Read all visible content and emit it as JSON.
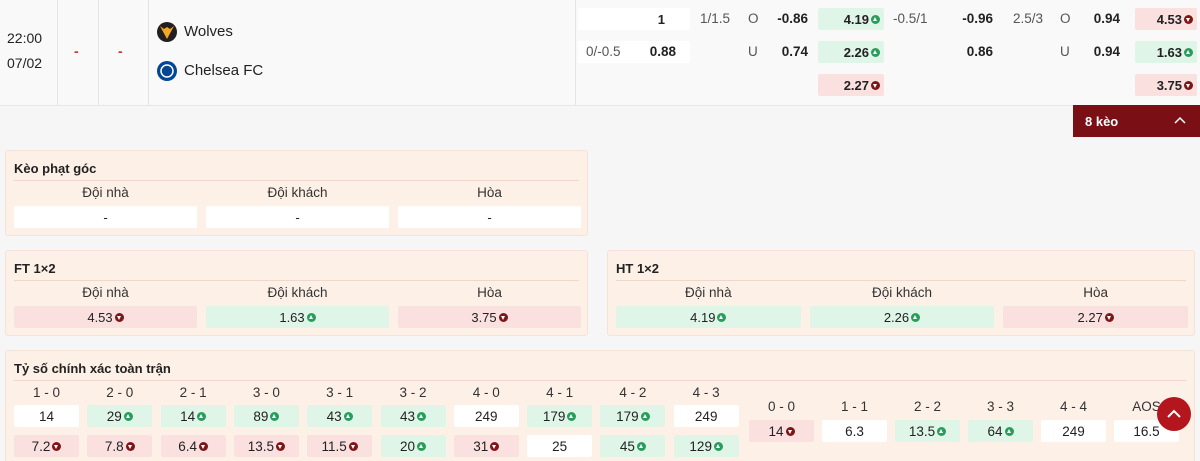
{
  "match": {
    "time": "22:00",
    "date": "07/02",
    "score_home": "-",
    "score_away": "-",
    "home": "Wolves",
    "away": "Chelsea FC",
    "odds": {
      "row1": [
        {
          "value": 1
        },
        {
          "value": "1/1.5"
        },
        {
          "value": "O"
        },
        {
          "value": -0.86
        },
        {
          "value": 4.19,
          "trend": "up"
        },
        {
          "value": "-0.5/1"
        },
        {
          "value": -0.96
        },
        {
          "value": "2.5/3"
        },
        {
          "value": "O"
        },
        {
          "value": 0.94
        },
        {
          "value": 4.53,
          "trend": "down"
        }
      ],
      "row2": [
        {
          "value": "0/-0.5"
        },
        {
          "value": 0.88
        },
        {
          "value": "U"
        },
        {
          "value": 0.74
        },
        {
          "value": 2.26,
          "trend": "up"
        },
        {
          "value": 0.86
        },
        {
          "value": "U"
        },
        {
          "value": 0.94
        },
        {
          "value": 1.63,
          "trend": "up"
        }
      ],
      "row3": [
        {
          "value": 2.27,
          "trend": "down"
        },
        {
          "value": 3.75,
          "trend": "down"
        }
      ]
    }
  },
  "more_button": "8 kèo",
  "corner": {
    "title": "Kèo phạt góc",
    "headers": [
      "Đội nhà",
      "Đội khách",
      "Hòa"
    ],
    "odds": [
      {
        "value": "-"
      },
      {
        "value": "-"
      },
      {
        "value": "-"
      }
    ]
  },
  "ft": {
    "title": "FT 1×2",
    "headers": [
      "Đội nhà",
      "Đội khách",
      "Hòa"
    ],
    "odds": [
      {
        "value": 4.53,
        "trend": "down"
      },
      {
        "value": 1.63,
        "trend": "up"
      },
      {
        "value": 3.75,
        "trend": "down"
      }
    ]
  },
  "ht": {
    "title": "HT 1×2",
    "headers": [
      "Đội nhà",
      "Đội khách",
      "Hòa"
    ],
    "odds": [
      {
        "value": 4.19,
        "trend": "up"
      },
      {
        "value": 2.26,
        "trend": "up"
      },
      {
        "value": 2.27,
        "trend": "down"
      }
    ]
  },
  "correct_score": {
    "title": "Tỷ số chính xác toàn trận",
    "scores": [
      {
        "label": "1 - 0",
        "odds": [
          {
            "value": 14
          },
          {
            "value": 7.2,
            "trend": "down"
          }
        ]
      },
      {
        "label": "2 - 0",
        "odds": [
          {
            "value": 29,
            "trend": "up"
          },
          {
            "value": 7.8,
            "trend": "down"
          }
        ]
      },
      {
        "label": "2 - 1",
        "odds": [
          {
            "value": 14,
            "trend": "up"
          },
          {
            "value": 6.4,
            "trend": "down"
          }
        ]
      },
      {
        "label": "3 - 0",
        "odds": [
          {
            "value": 89,
            "trend": "up"
          },
          {
            "value": 13.5,
            "trend": "down"
          }
        ]
      },
      {
        "label": "3 - 1",
        "odds": [
          {
            "value": 43,
            "trend": "up"
          },
          {
            "value": 11.5,
            "trend": "down"
          }
        ]
      },
      {
        "label": "3 - 2",
        "odds": [
          {
            "value": 43,
            "trend": "up"
          },
          {
            "value": 20,
            "trend": "up"
          }
        ]
      },
      {
        "label": "4 - 0",
        "odds": [
          {
            "value": 249
          },
          {
            "value": 31,
            "trend": "down"
          }
        ]
      },
      {
        "label": "4 - 1",
        "odds": [
          {
            "value": 179,
            "trend": "up"
          },
          {
            "value": 25
          }
        ]
      },
      {
        "label": "4 - 2",
        "odds": [
          {
            "value": 179,
            "trend": "up"
          },
          {
            "value": 45,
            "trend": "up"
          }
        ]
      },
      {
        "label": "4 - 3",
        "odds": [
          {
            "value": 249
          },
          {
            "value": 129,
            "trend": "up"
          }
        ]
      }
    ],
    "draws": [
      {
        "label": "0 - 0",
        "odds": [
          {
            "value": 14,
            "trend": "down"
          }
        ]
      },
      {
        "label": "1 - 1",
        "odds": [
          {
            "value": 6.3
          }
        ]
      },
      {
        "label": "2 - 2",
        "odds": [
          {
            "value": 13.5,
            "trend": "up"
          }
        ]
      },
      {
        "label": "3 - 3",
        "odds": [
          {
            "value": 64,
            "trend": "up"
          }
        ]
      },
      {
        "label": "4 - 4",
        "odds": [
          {
            "value": 249
          }
        ]
      },
      {
        "label": "AOS",
        "odds": [
          {
            "value": 16.5
          }
        ]
      }
    ]
  }
}
